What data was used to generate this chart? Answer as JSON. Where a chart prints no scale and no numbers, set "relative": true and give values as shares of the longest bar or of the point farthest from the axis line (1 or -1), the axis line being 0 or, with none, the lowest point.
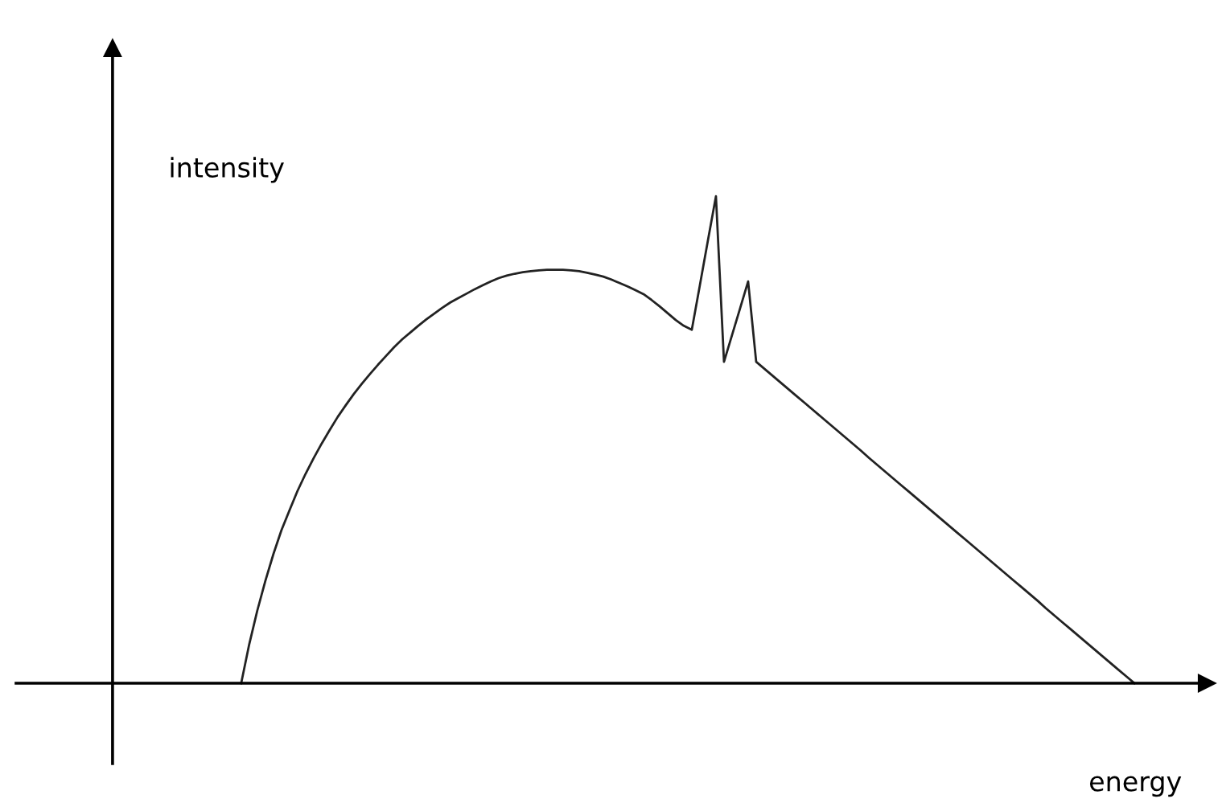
{
  "chart_data": {
    "type": "line",
    "relative": true,
    "xlabel": "energy",
    "ylabel": "intensity",
    "marker": "none",
    "line_style": "solid",
    "categories": [
      null,
      null,
      null,
      null,
      null,
      null,
      null,
      null,
      null,
      null,
      null,
      null,
      null,
      null,
      null,
      null,
      null,
      null,
      null,
      null,
      null,
      null,
      null,
      null,
      null,
      null,
      null,
      null,
      null,
      null,
      null,
      null,
      null,
      null,
      null,
      null,
      null,
      null,
      null,
      null,
      null,
      null,
      null,
      null,
      null,
      null,
      null,
      null,
      null,
      null,
      null,
      null,
      null,
      null,
      null,
      null,
      null,
      null,
      null,
      null,
      null,
      null,
      null,
      null,
      null,
      null,
      null,
      null,
      null,
      null,
      null,
      null,
      null,
      null,
      null,
      null,
      null,
      null,
      null,
      null,
      null,
      null,
      null,
      null,
      null,
      null,
      null,
      null,
      null,
      null,
      null,
      null,
      null,
      null,
      null,
      null,
      null,
      null,
      null,
      null,
      null,
      null,
      null,
      null,
      null,
      null,
      null,
      null,
      null,
      null,
      null,
      null
    ],
    "series": [
      {
        "color": "#222222",
        "values": [
          0,
          0.08,
          0.149,
          0.21,
          0.265,
          0.314,
          0.355,
          0.395,
          0.43,
          0.462,
          0.492,
          0.52,
          0.547,
          0.571,
          0.594,
          0.615,
          0.635,
          0.654,
          0.672,
          0.69,
          0.706,
          0.72,
          0.734,
          0.747,
          0.759,
          0.771,
          0.782,
          0.791,
          0.8,
          0.809,
          0.817,
          0.825,
          0.832,
          0.837,
          0.841,
          0.844,
          0.846,
          0.848,
          0.849,
          0.849,
          0.849,
          0.848,
          0.846,
          0.843,
          0.839,
          0.835,
          0.829,
          0.822,
          0.815,
          0.807,
          0.799,
          0.787,
          0.774,
          0.76,
          0.746,
          0.734,
          0.726,
          0.817,
          0.909,
          1.0,
          0.66,
          0.715,
          0.77,
          0.825,
          0.66,
          0.646,
          0.632,
          0.618,
          0.604,
          0.59,
          0.576,
          0.562,
          0.548,
          0.534,
          0.52,
          0.506,
          0.492,
          0.478,
          0.463,
          0.449,
          0.435,
          0.421,
          0.407,
          0.393,
          0.379,
          0.365,
          0.351,
          0.337,
          0.323,
          0.309,
          0.295,
          0.281,
          0.267,
          0.253,
          0.239,
          0.225,
          0.211,
          0.197,
          0.183,
          0.169,
          0.154,
          0.14,
          0.126,
          0.112,
          0.098,
          0.084,
          0.07,
          0.056,
          0.042,
          0.028,
          0.014,
          0
        ]
      }
    ]
  }
}
